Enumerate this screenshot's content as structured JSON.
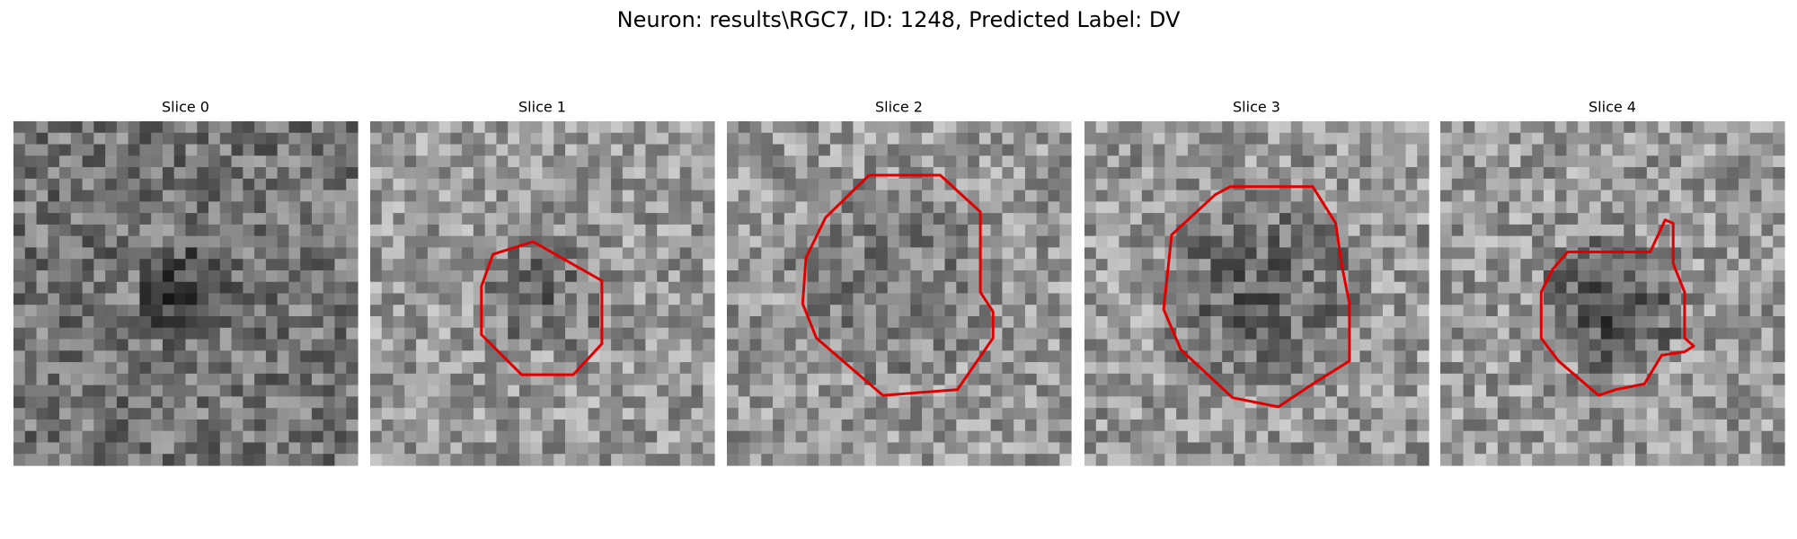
{
  "title": "Neuron: results\\RGC7, ID: 1248, Predicted Label: DV",
  "panels": [
    {
      "title": "Slice 0"
    },
    {
      "title": "Slice 1"
    },
    {
      "title": "Slice 2"
    },
    {
      "title": "Slice 3"
    },
    {
      "title": "Slice 4"
    }
  ]
}
